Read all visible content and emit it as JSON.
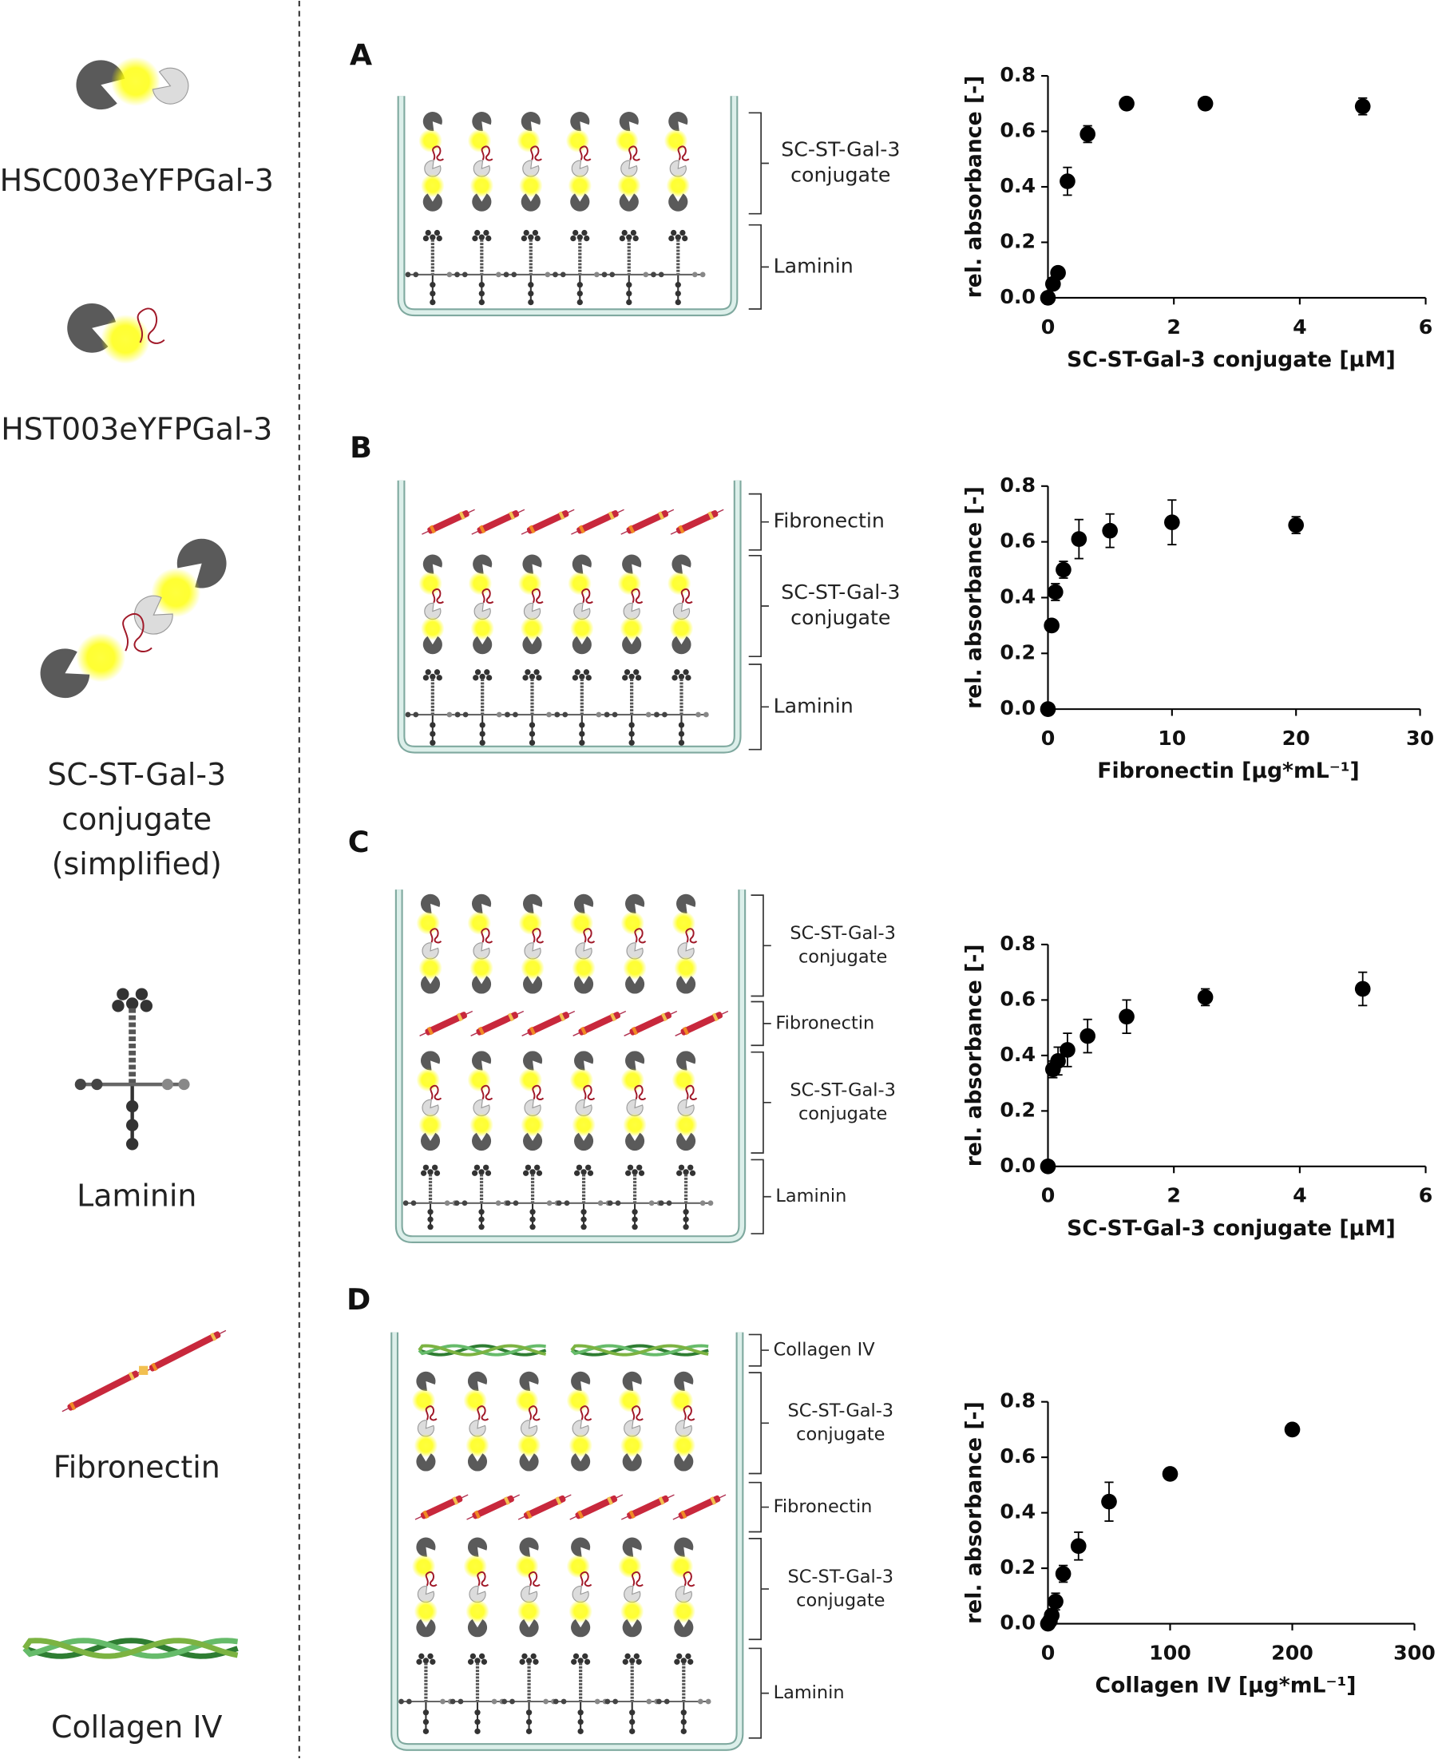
{
  "legend": [
    {
      "lines": [
        "HSC003eYFPGal-3"
      ]
    },
    {
      "lines": [
        "HST003eYFPGal-3"
      ]
    },
    {
      "lines": [
        "SC-ST-Gal-3",
        "conjugate",
        "(simplified)"
      ]
    },
    {
      "lines": [
        "Laminin"
      ]
    },
    {
      "lines": [
        "Fibronectin"
      ]
    },
    {
      "lines": [
        "Collagen IV"
      ]
    }
  ],
  "panels": [
    {
      "letter": "A",
      "layers": [
        [
          "SC-ST-Gal-3",
          "conjugate"
        ],
        [
          "Laminin"
        ]
      ]
    },
    {
      "letter": "B",
      "layers": [
        [
          "Fibronectin"
        ],
        [
          "SC-ST-Gal-3",
          "conjugate"
        ],
        [
          "Laminin"
        ]
      ]
    },
    {
      "letter": "C",
      "layers": [
        [
          "SC-ST-Gal-3",
          "conjugate"
        ],
        [
          "Fibronectin"
        ],
        [
          "SC-ST-Gal-3",
          "conjugate"
        ],
        [
          "Laminin"
        ]
      ]
    },
    {
      "letter": "D",
      "layers": [
        [
          "Collagen IV"
        ],
        [
          "SC-ST-Gal-3",
          "conjugate"
        ],
        [
          "Fibronectin"
        ],
        [
          "SC-ST-Gal-3",
          "conjugate"
        ],
        [
          "Laminin"
        ]
      ]
    }
  ],
  "chart_data": [
    {
      "type": "scatter",
      "xlabel": "SC-ST-Gal-3 conjugate [µM]",
      "ylabel": "rel. absorbance [-]",
      "x": [
        0,
        0.08,
        0.16,
        0.31,
        0.63,
        1.25,
        2.5,
        5
      ],
      "values": [
        0,
        0.05,
        0.09,
        0.42,
        0.59,
        0.7,
        0.7,
        0.69
      ],
      "errors": [
        0,
        0.02,
        0.01,
        0.05,
        0.03,
        0.01,
        0.01,
        0.03
      ],
      "color": "#000000",
      "xlim": [
        0,
        6
      ],
      "xticks": [
        0,
        2,
        4,
        6
      ],
      "ylim": [
        0,
        0.8
      ],
      "yticks": [
        {
          "value": 0,
          "label": "0.0"
        },
        0.2,
        0.4,
        0.6,
        0.8
      ]
    },
    {
      "type": "scatter",
      "xlabel": "Fibronectin [µg*mL⁻¹]",
      "ylabel": "rel. absorbance [-]",
      "x": [
        0,
        0.3,
        0.6,
        1.25,
        2.5,
        5,
        10,
        20
      ],
      "values": [
        0,
        0.3,
        0.42,
        0.5,
        0.61,
        0.64,
        0.67,
        0.66
      ],
      "errors": [
        0,
        0.02,
        0.03,
        0.03,
        0.07,
        0.06,
        0.08,
        0.03
      ],
      "color": "#000000",
      "xlim": [
        0,
        30
      ],
      "xticks": [
        0,
        10,
        20,
        30
      ],
      "ylim": [
        0,
        0.8
      ],
      "yticks": [
        {
          "value": 0,
          "label": "0.0"
        },
        0.2,
        0.4,
        0.6,
        0.8
      ]
    },
    {
      "type": "scatter",
      "xlabel": "SC-ST-Gal-3 conjugate [µM]",
      "ylabel": "rel. absorbance [-]",
      "x": [
        0,
        0.08,
        0.16,
        0.31,
        0.63,
        1.25,
        2.5,
        5
      ],
      "values": [
        0,
        0.35,
        0.38,
        0.42,
        0.47,
        0.54,
        0.61,
        0.64
      ],
      "errors": [
        0,
        0.03,
        0.05,
        0.06,
        0.06,
        0.06,
        0.03,
        0.06
      ],
      "color": "#000000",
      "xlim": [
        0,
        6
      ],
      "xticks": [
        0,
        2,
        4,
        6
      ],
      "ylim": [
        0,
        0.8
      ],
      "yticks": [
        {
          "value": 0,
          "label": "0.0"
        },
        0.2,
        0.4,
        0.6,
        0.8
      ]
    },
    {
      "type": "scatter",
      "xlabel": "Collagen IV [µg*mL⁻¹]",
      "ylabel": "rel. absorbance [-]",
      "x": [
        0,
        1.56,
        3.1,
        6.25,
        12.5,
        25,
        50,
        100,
        200
      ],
      "values": [
        0,
        0.01,
        0.03,
        0.08,
        0.18,
        0.28,
        0.44,
        0.54,
        0.7
      ],
      "errors": [
        0,
        0.01,
        0.01,
        0.03,
        0.03,
        0.05,
        0.07,
        0.01,
        0.01
      ],
      "color": "#000000",
      "xlim": [
        0,
        300
      ],
      "xticks": [
        0,
        100,
        200,
        300
      ],
      "ylim": [
        0,
        0.8
      ],
      "yticks": [
        {
          "value": 0,
          "label": "0.0"
        },
        0.2,
        0.4,
        0.6,
        0.8
      ]
    }
  ]
}
